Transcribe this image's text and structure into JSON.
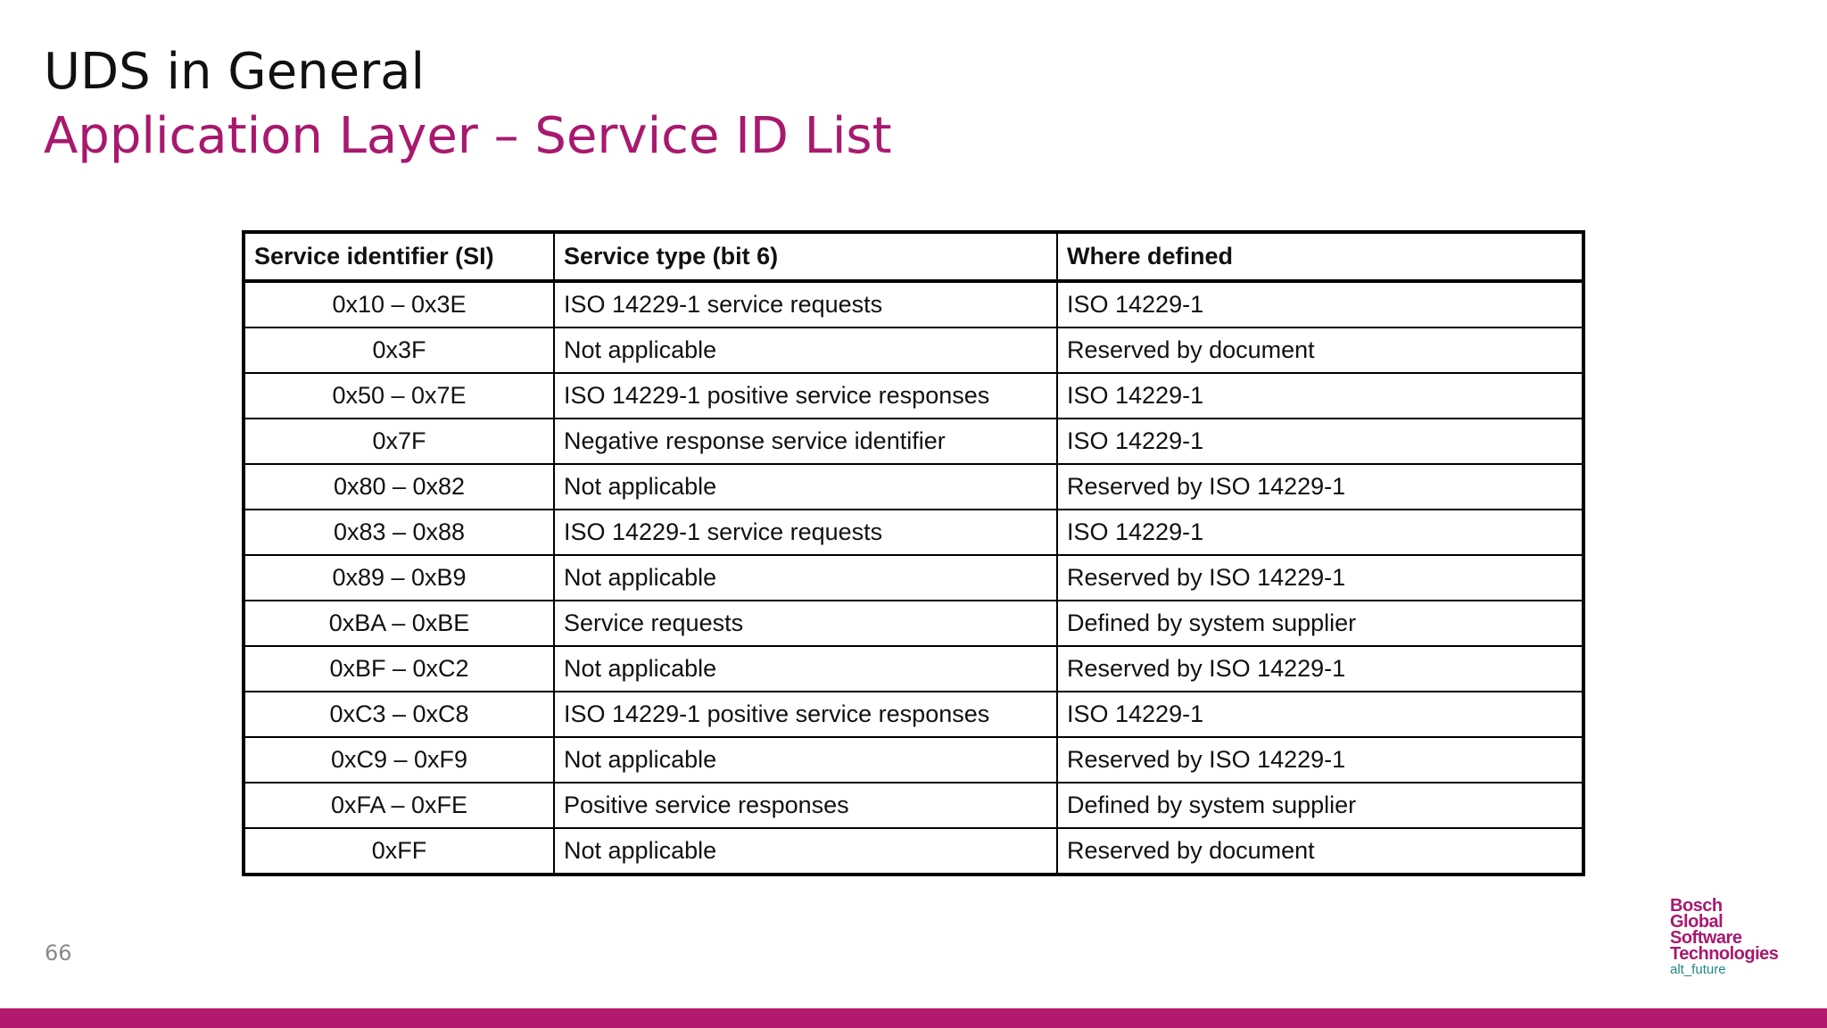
{
  "slide": {
    "title": "UDS in General",
    "subtitle": "Application Layer – Service ID List",
    "page_number": "66"
  },
  "table": {
    "headers": [
      "Service identifier (SI)",
      "Service type (bit 6)",
      "Where defined"
    ],
    "rows": [
      [
        "0x10 – 0x3E",
        "ISO 14229-1 service requests",
        "ISO 14229-1"
      ],
      [
        "0x3F",
        "Not applicable",
        "Reserved by document"
      ],
      [
        "0x50 – 0x7E",
        "ISO 14229-1 positive service responses",
        "ISO 14229-1"
      ],
      [
        "0x7F",
        "Negative response service identifier",
        "ISO 14229-1"
      ],
      [
        "0x80 – 0x82",
        "Not applicable",
        "Reserved by ISO 14229-1"
      ],
      [
        "0x83 – 0x88",
        "ISO 14229-1 service requests",
        "ISO 14229-1"
      ],
      [
        "0x89 – 0xB9",
        "Not applicable",
        "Reserved by ISO 14229-1"
      ],
      [
        "0xBA – 0xBE",
        "Service requests",
        "Defined by system supplier"
      ],
      [
        "0xBF – 0xC2",
        "Not applicable",
        "Reserved by ISO 14229-1"
      ],
      [
        "0xC3 – 0xC8",
        "ISO 14229-1 positive service responses",
        "ISO 14229-1"
      ],
      [
        "0xC9 – 0xF9",
        "Not applicable",
        "Reserved by ISO 14229-1"
      ],
      [
        "0xFA – 0xFE",
        "Positive service responses",
        "Defined by system supplier"
      ],
      [
        "0xFF",
        "Not applicable",
        "Reserved by document"
      ]
    ]
  },
  "logo": {
    "lines": [
      "Bosch",
      "Global",
      "Software",
      "Technologies"
    ],
    "tagline": "alt_future"
  },
  "colors": {
    "accent": "#a8196e",
    "footer_bar": "#b5196e",
    "tagline": "#1f8a86",
    "text": "#111111"
  }
}
